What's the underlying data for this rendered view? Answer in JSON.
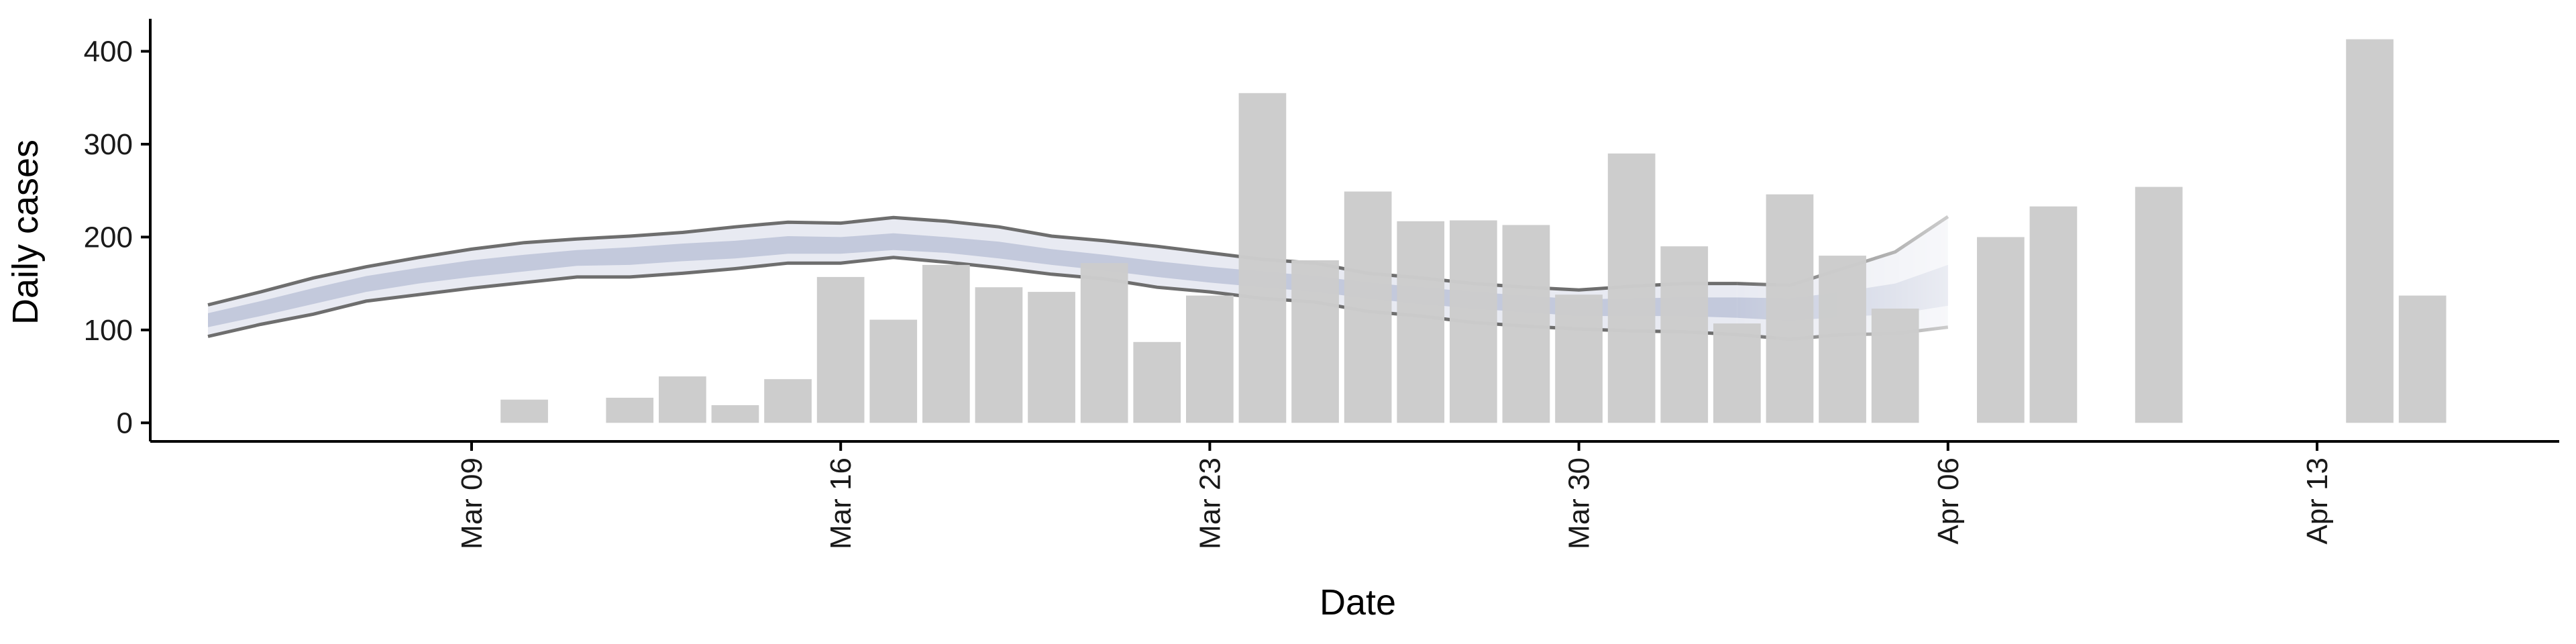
{
  "chart_data": {
    "type": "bar",
    "xlabel": "Date",
    "ylabel": "Daily cases",
    "ylim": [
      -20,
      435
    ],
    "y_ticks": [
      0,
      100,
      200,
      300,
      400
    ],
    "x_ticks": [
      {
        "date": "2020-03-09",
        "label": "Mar 09"
      },
      {
        "date": "2020-03-16",
        "label": "Mar 16"
      },
      {
        "date": "2020-03-23",
        "label": "Mar 23"
      },
      {
        "date": "2020-03-30",
        "label": "Mar 30"
      },
      {
        "date": "2020-04-06",
        "label": "Apr 06"
      },
      {
        "date": "2020-04-13",
        "label": "Apr 13"
      }
    ],
    "grid": false,
    "legend": "none",
    "colors": {
      "bars": "#cccccc",
      "ribbon_outer": "#e8eaf2",
      "ribbon_inner": "#c3c9dc",
      "bound_lines": "#6e6e6e"
    },
    "series": [
      {
        "kind": "bars",
        "values": [
          {
            "date": "2020-03-10",
            "y": 25
          },
          {
            "date": "2020-03-12",
            "y": 27
          },
          {
            "date": "2020-03-13",
            "y": 50
          },
          {
            "date": "2020-03-14",
            "y": 19
          },
          {
            "date": "2020-03-15",
            "y": 47
          },
          {
            "date": "2020-03-16",
            "y": 157
          },
          {
            "date": "2020-03-17",
            "y": 111
          },
          {
            "date": "2020-03-18",
            "y": 170
          },
          {
            "date": "2020-03-19",
            "y": 146
          },
          {
            "date": "2020-03-20",
            "y": 141
          },
          {
            "date": "2020-03-21",
            "y": 172
          },
          {
            "date": "2020-03-22",
            "y": 87
          },
          {
            "date": "2020-03-23",
            "y": 137
          },
          {
            "date": "2020-03-24",
            "y": 355
          },
          {
            "date": "2020-03-25",
            "y": 175
          },
          {
            "date": "2020-03-26",
            "y": 249
          },
          {
            "date": "2020-03-27",
            "y": 217
          },
          {
            "date": "2020-03-28",
            "y": 218
          },
          {
            "date": "2020-03-29",
            "y": 213
          },
          {
            "date": "2020-03-30",
            "y": 138
          },
          {
            "date": "2020-03-31",
            "y": 290
          },
          {
            "date": "2020-04-01",
            "y": 190
          },
          {
            "date": "2020-04-02",
            "y": 107
          },
          {
            "date": "2020-04-03",
            "y": 246
          },
          {
            "date": "2020-04-04",
            "y": 180
          },
          {
            "date": "2020-04-05",
            "y": 123
          },
          {
            "date": "2020-04-07",
            "y": 200
          },
          {
            "date": "2020-04-08",
            "y": 233
          },
          {
            "date": "2020-04-10",
            "y": 254
          },
          {
            "date": "2020-04-14",
            "y": 413
          },
          {
            "date": "2020-04-15",
            "y": 137
          }
        ]
      },
      {
        "kind": "ribbon",
        "values": [
          {
            "date": "2020-03-04",
            "lo90": 93,
            "lo50": 103,
            "median": 110,
            "hi50": 118,
            "hi90": 127
          },
          {
            "date": "2020-03-05",
            "lo90": 106,
            "lo50": 115,
            "median": 123,
            "hi50": 131,
            "hi90": 141
          },
          {
            "date": "2020-03-06",
            "lo90": 117,
            "lo50": 128,
            "median": 136,
            "hi50": 145,
            "hi90": 156
          },
          {
            "date": "2020-03-07",
            "lo90": 131,
            "lo50": 141,
            "median": 149,
            "hi50": 158,
            "hi90": 168
          },
          {
            "date": "2020-03-08",
            "lo90": 138,
            "lo50": 150,
            "median": 158,
            "hi50": 167,
            "hi90": 178
          },
          {
            "date": "2020-03-09",
            "lo90": 145,
            "lo50": 157,
            "median": 166,
            "hi50": 175,
            "hi90": 187
          },
          {
            "date": "2020-03-10",
            "lo90": 151,
            "lo50": 163,
            "median": 172,
            "hi50": 181,
            "hi90": 194
          },
          {
            "date": "2020-03-11",
            "lo90": 157,
            "lo50": 169,
            "median": 176,
            "hi50": 186,
            "hi90": 198
          },
          {
            "date": "2020-03-12",
            "lo90": 157,
            "lo50": 170,
            "median": 179,
            "hi50": 189,
            "hi90": 201
          },
          {
            "date": "2020-03-13",
            "lo90": 161,
            "lo50": 174,
            "median": 183,
            "hi50": 193,
            "hi90": 205
          },
          {
            "date": "2020-03-14",
            "lo90": 166,
            "lo50": 177,
            "median": 186,
            "hi50": 196,
            "hi90": 211
          },
          {
            "date": "2020-03-15",
            "lo90": 172,
            "lo50": 182,
            "median": 191,
            "hi50": 201,
            "hi90": 216
          },
          {
            "date": "2020-03-16",
            "lo90": 172,
            "lo50": 182,
            "median": 190,
            "hi50": 200,
            "hi90": 215
          },
          {
            "date": "2020-03-17",
            "lo90": 178,
            "lo50": 186,
            "median": 194,
            "hi50": 204,
            "hi90": 221
          },
          {
            "date": "2020-03-18",
            "lo90": 173,
            "lo50": 183,
            "median": 191,
            "hi50": 200,
            "hi90": 217
          },
          {
            "date": "2020-03-19",
            "lo90": 167,
            "lo50": 177,
            "median": 185,
            "hi50": 195,
            "hi90": 211
          },
          {
            "date": "2020-03-20",
            "lo90": 160,
            "lo50": 170,
            "median": 178,
            "hi50": 187,
            "hi90": 201
          },
          {
            "date": "2020-03-21",
            "lo90": 155,
            "lo50": 164,
            "median": 172,
            "hi50": 181,
            "hi90": 196
          },
          {
            "date": "2020-03-22",
            "lo90": 146,
            "lo50": 157,
            "median": 165,
            "hi50": 174,
            "hi90": 190
          },
          {
            "date": "2020-03-23",
            "lo90": 141,
            "lo50": 151,
            "median": 159,
            "hi50": 168,
            "hi90": 183
          },
          {
            "date": "2020-03-24",
            "lo90": 134,
            "lo50": 146,
            "median": 154,
            "hi50": 163,
            "hi90": 176
          },
          {
            "date": "2020-03-25",
            "lo90": 130,
            "lo50": 141,
            "median": 149,
            "hi50": 158,
            "hi90": 172
          },
          {
            "date": "2020-03-26",
            "lo90": 120,
            "lo50": 134,
            "median": 142,
            "hi50": 151,
            "hi90": 161
          },
          {
            "date": "2020-03-27",
            "lo90": 115,
            "lo50": 128,
            "median": 137,
            "hi50": 146,
            "hi90": 156
          },
          {
            "date": "2020-03-28",
            "lo90": 108,
            "lo50": 123,
            "median": 132,
            "hi50": 141,
            "hi90": 150
          },
          {
            "date": "2020-03-29",
            "lo90": 104,
            "lo50": 119,
            "median": 128,
            "hi50": 137,
            "hi90": 146
          },
          {
            "date": "2020-03-30",
            "lo90": 101,
            "lo50": 115,
            "median": 124,
            "hi50": 133,
            "hi90": 143
          },
          {
            "date": "2020-03-31",
            "lo90": 99,
            "lo50": 115,
            "median": 124,
            "hi50": 134,
            "hi90": 147
          },
          {
            "date": "2020-04-01",
            "lo90": 98,
            "lo50": 115,
            "median": 125,
            "hi50": 135,
            "hi90": 150
          },
          {
            "date": "2020-04-02",
            "lo90": 95,
            "lo50": 113,
            "median": 124,
            "hi50": 135,
            "hi90": 150
          },
          {
            "date": "2020-04-03",
            "lo90": 90,
            "lo50": 110,
            "median": 122,
            "hi50": 134,
            "hi90": 148
          },
          {
            "date": "2020-04-04",
            "lo90": 95,
            "lo50": 114,
            "median": 127,
            "hi50": 141,
            "hi90": 166
          },
          {
            "date": "2020-04-05",
            "lo90": 96,
            "lo50": 117,
            "median": 132,
            "hi50": 150,
            "hi90": 184
          },
          {
            "date": "2020-04-06",
            "lo90": 103,
            "lo50": 126,
            "median": 145,
            "hi50": 170,
            "hi90": 222
          }
        ]
      }
    ]
  }
}
